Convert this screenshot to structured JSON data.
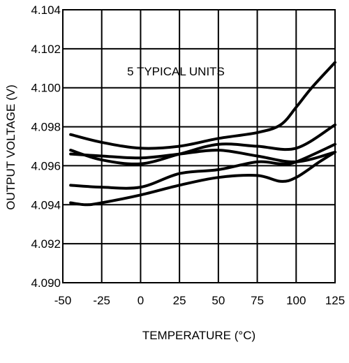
{
  "chart_data": {
    "type": "line",
    "title": "",
    "xlabel": "TEMPERATURE (°C)",
    "ylabel": "OUTPUT VOLTAGE (V)",
    "annotation": "5 TYPICAL UNITS",
    "xlim": [
      -50,
      125
    ],
    "ylim": [
      4.09,
      4.104
    ],
    "xticks": [
      -50,
      -25,
      0,
      25,
      50,
      75,
      100,
      125
    ],
    "xtick_labels": [
      "-50",
      "-25",
      "0",
      "25",
      "50",
      "75",
      "100",
      "125"
    ],
    "yticks": [
      4.09,
      4.092,
      4.094,
      4.096,
      4.098,
      4.1,
      4.102,
      4.104
    ],
    "ytick_labels": [
      "4.090",
      "4.092",
      "4.094",
      "4.096",
      "4.098",
      "4.100",
      "4.102",
      "4.104"
    ],
    "grid": true,
    "legend": "none",
    "line_color": "#000000",
    "series": [
      {
        "x": [
          -45,
          -25,
          0,
          25,
          50,
          75,
          90,
          100,
          110,
          125
        ],
        "y": [
          4.0976,
          4.0972,
          4.0969,
          4.097,
          4.0974,
          4.0977,
          4.0981,
          4.099,
          4.1,
          4.1013
        ]
      },
      {
        "x": [
          -45,
          -25,
          0,
          25,
          50,
          75,
          100,
          125
        ],
        "y": [
          4.0968,
          4.0963,
          4.0961,
          4.0966,
          4.0971,
          4.097,
          4.0969,
          4.0981
        ]
      },
      {
        "x": [
          -45,
          -25,
          0,
          25,
          50,
          75,
          100,
          125
        ],
        "y": [
          4.0966,
          4.0965,
          4.0964,
          4.0966,
          4.0968,
          4.0965,
          4.0962,
          4.0967
        ]
      },
      {
        "x": [
          -45,
          -25,
          0,
          25,
          50,
          75,
          90,
          100,
          125
        ],
        "y": [
          4.095,
          4.0949,
          4.0949,
          4.0956,
          4.0958,
          4.0962,
          4.0961,
          4.0962,
          4.0971
        ]
      },
      {
        "x": [
          -45,
          -35,
          -25,
          0,
          25,
          50,
          75,
          90,
          100,
          115,
          125
        ],
        "y": [
          4.0941,
          4.094,
          4.0941,
          4.0945,
          4.095,
          4.0954,
          4.0955,
          4.0952,
          4.0954,
          4.0962,
          4.0967
        ]
      }
    ]
  }
}
